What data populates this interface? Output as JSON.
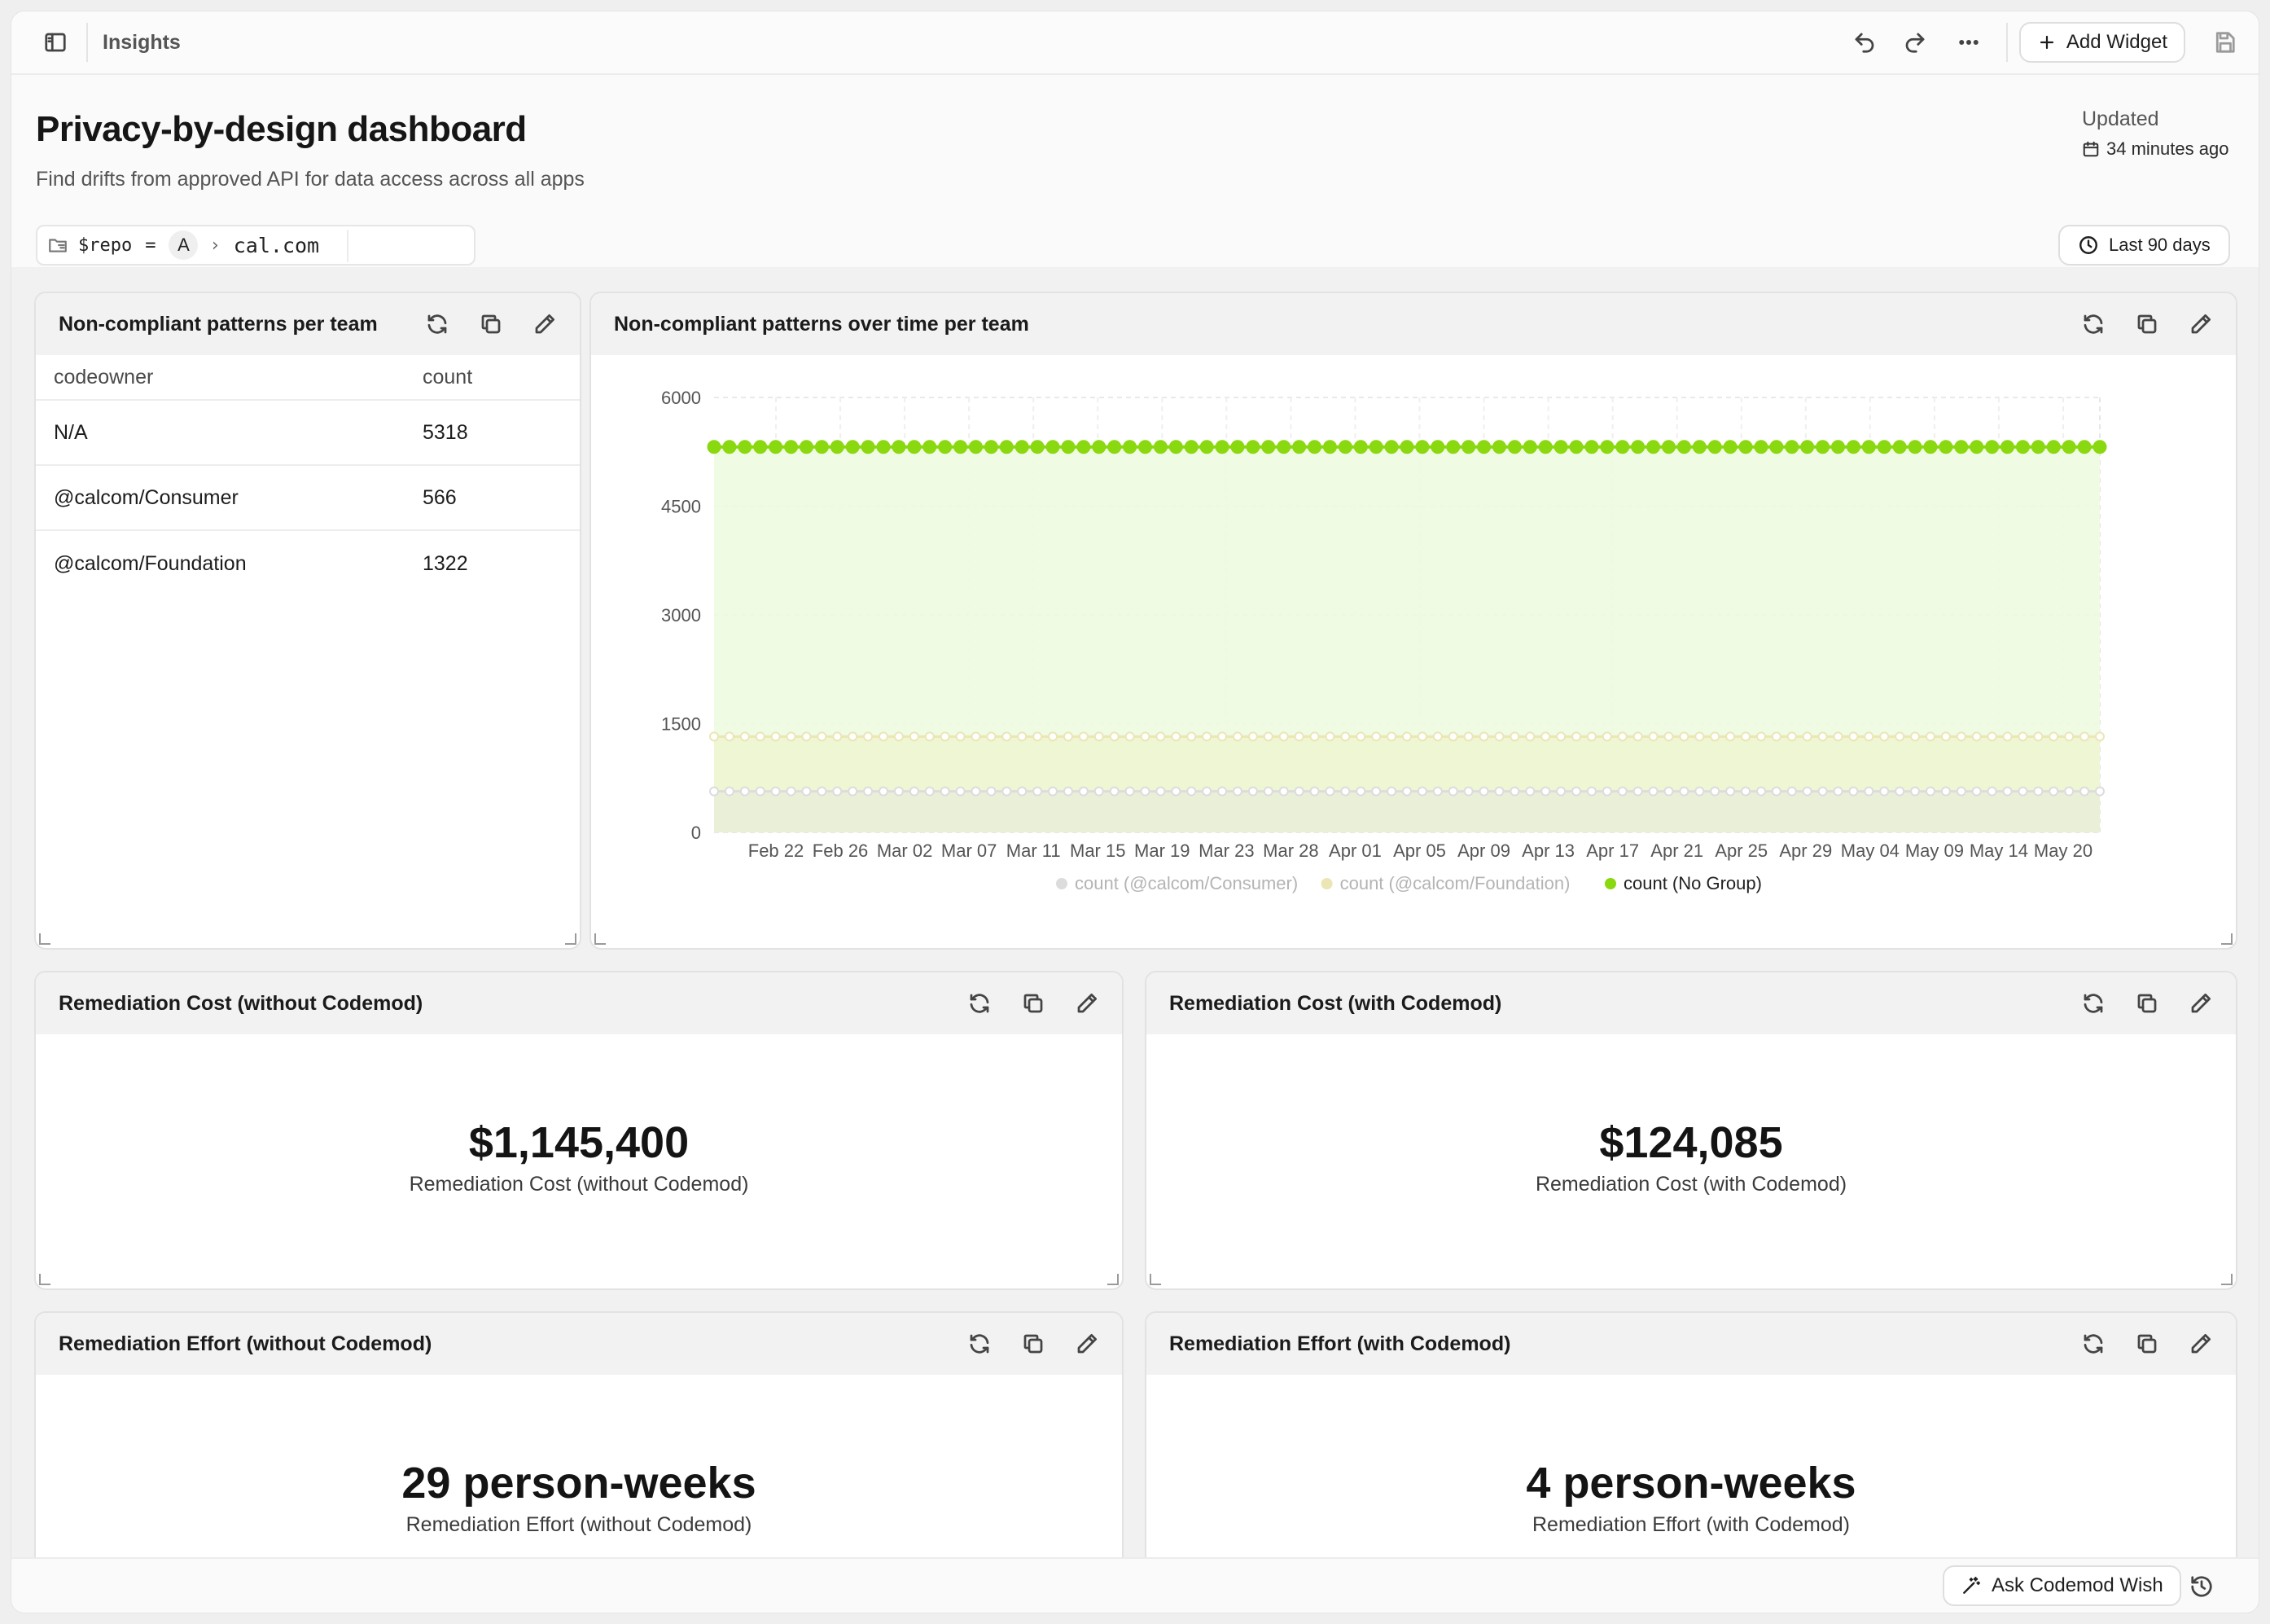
{
  "topbar": {
    "title": "Insights",
    "add_widget_label": "Add Widget"
  },
  "header": {
    "title": "Privacy-by-design dashboard",
    "subtitle": "Find drifts from approved API for data access across all apps",
    "updated_label": "Updated",
    "updated_value": "34 minutes ago",
    "filter": {
      "variable": "$repo",
      "operator": "=",
      "badge": "A",
      "value": "cal.com"
    },
    "time_range": "Last 90 days"
  },
  "widgets": {
    "team_table": {
      "title": "Non-compliant patterns per team",
      "columns": [
        "codeowner",
        "count"
      ],
      "rows": [
        [
          "N/A",
          "5318"
        ],
        [
          "@calcom/Consumer",
          "566"
        ],
        [
          "@calcom/Foundation",
          "1322"
        ]
      ]
    },
    "time_chart": {
      "title": "Non-compliant patterns over time per team"
    },
    "cost_without": {
      "title": "Remediation Cost (without Codemod)",
      "value": "$1,145,400",
      "label": "Remediation Cost (without Codemod)"
    },
    "cost_with": {
      "title": "Remediation Cost (with Codemod)",
      "value": "$124,085",
      "label": "Remediation Cost (with Codemod)"
    },
    "effort_without": {
      "title": "Remediation Effort (without Codemod)",
      "value": "29 person-weeks",
      "label": "Remediation Effort (without Codemod)"
    },
    "effort_with": {
      "title": "Remediation Effort (with Codemod)",
      "value": "4 person-weeks",
      "label": "Remediation Effort (with Codemod)"
    }
  },
  "bottom": {
    "ask_label": "Ask Codemod Wish"
  },
  "icons": {
    "sidebar": "sidebar-toggle-icon",
    "undo": "undo-icon",
    "redo": "redo-icon",
    "more": "more-icon",
    "plus": "plus-icon",
    "save": "save-icon",
    "calendar": "calendar-icon",
    "folder": "folder-filter-icon",
    "clock": "clock-icon",
    "refresh": "refresh-icon",
    "copy": "copy-icon",
    "edit": "pencil-icon",
    "wand": "magic-wand-icon",
    "history": "history-icon"
  },
  "colors": {
    "no_group": "#8ad80f",
    "foundation": "#ece8b8",
    "consumer": "#dedede",
    "area_fill": "#eefbe0"
  },
  "chart_data": {
    "type": "area",
    "x_start": "Feb 19",
    "x_end": "May 20",
    "x_ticks": [
      "Feb 22",
      "Feb 26",
      "Mar 02",
      "Mar 07",
      "Mar 11",
      "Mar 15",
      "Mar 19",
      "Mar 23",
      "Mar 28",
      "Apr 01",
      "Apr 05",
      "Apr 09",
      "Apr 13",
      "Apr 17",
      "Apr 21",
      "Apr 25",
      "Apr 29",
      "May 04",
      "May 09",
      "May 14",
      "May 20"
    ],
    "y_ticks": [
      "0",
      "1500",
      "3000",
      "4500",
      "6000"
    ],
    "ylim": [
      0,
      6000
    ],
    "grid": true,
    "legend_position": "bottom",
    "point_count": 91,
    "series": [
      {
        "name": "count (@calcom/Consumer)",
        "value": 566,
        "color": "#dcdcdc"
      },
      {
        "name": "count (@calcom/Foundation)",
        "value": 1322,
        "color": "#ebe6b4"
      },
      {
        "name": "count (No Group)",
        "value": 5318,
        "color": "#8ad80f"
      }
    ]
  }
}
